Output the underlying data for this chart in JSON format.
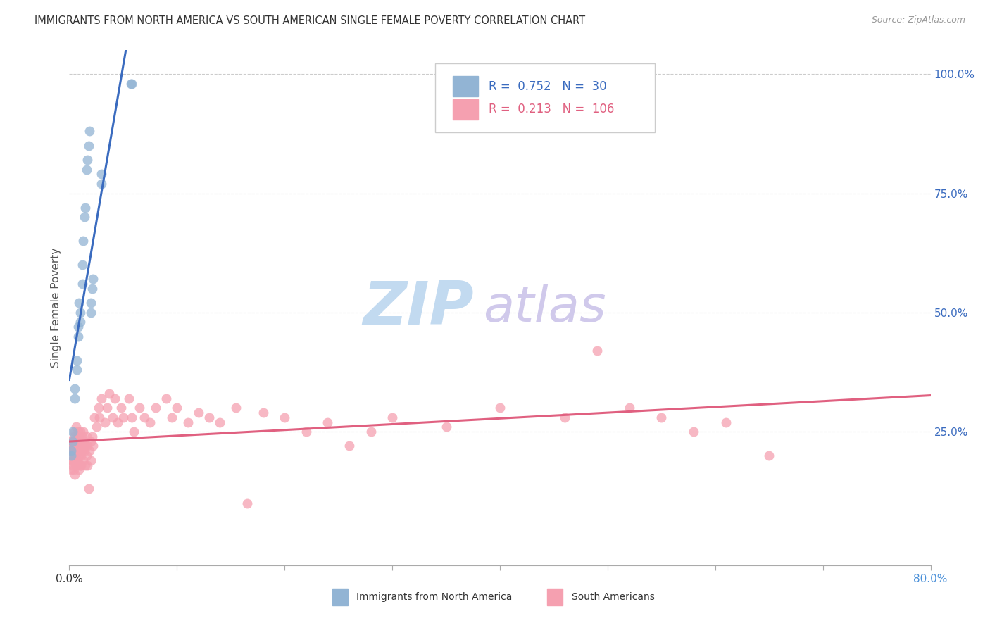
{
  "title": "IMMIGRANTS FROM NORTH AMERICA VS SOUTH AMERICAN SINGLE FEMALE POVERTY CORRELATION CHART",
  "source": "Source: ZipAtlas.com",
  "ylabel": "Single Female Poverty",
  "right_yticks": [
    "100.0%",
    "75.0%",
    "50.0%",
    "25.0%"
  ],
  "right_ytick_vals": [
    1.0,
    0.75,
    0.5,
    0.25
  ],
  "legend_label1": "Immigrants from North America",
  "legend_label2": "South Americans",
  "R1": 0.752,
  "N1": 30,
  "R2": 0.213,
  "N2": 106,
  "color_blue": "#92b4d4",
  "color_blue_line": "#3a6bbf",
  "color_pink": "#f5a0b0",
  "color_pink_line": "#e06080",
  "color_blue_text": "#3a6bbf",
  "color_pink_text": "#e06080",
  "xmin": 0.0,
  "xmax": 0.8,
  "ymin": -0.03,
  "ymax": 1.05,
  "xtick_positions": [
    0.0,
    0.1,
    0.2,
    0.3,
    0.4,
    0.5,
    0.6,
    0.7,
    0.8
  ],
  "xtick_labels_show": [
    "0.0%",
    "",
    "",
    "",
    "",
    "",
    "",
    "",
    "80.0%"
  ],
  "blue_x": [
    0.002,
    0.002,
    0.003,
    0.003,
    0.005,
    0.005,
    0.007,
    0.007,
    0.008,
    0.008,
    0.009,
    0.01,
    0.01,
    0.012,
    0.012,
    0.013,
    0.014,
    0.015,
    0.016,
    0.017,
    0.018,
    0.019,
    0.02,
    0.02,
    0.021,
    0.022,
    0.03,
    0.03,
    0.057,
    0.058
  ],
  "blue_y": [
    0.21,
    0.2,
    0.25,
    0.23,
    0.32,
    0.34,
    0.4,
    0.38,
    0.45,
    0.47,
    0.52,
    0.5,
    0.48,
    0.6,
    0.56,
    0.65,
    0.7,
    0.72,
    0.8,
    0.82,
    0.85,
    0.88,
    0.5,
    0.52,
    0.55,
    0.57,
    0.77,
    0.79,
    0.98,
    0.98
  ],
  "pink_x": [
    0.001,
    0.001,
    0.002,
    0.002,
    0.002,
    0.003,
    0.003,
    0.003,
    0.003,
    0.004,
    0.004,
    0.004,
    0.004,
    0.005,
    0.005,
    0.005,
    0.005,
    0.005,
    0.006,
    0.006,
    0.006,
    0.006,
    0.006,
    0.007,
    0.007,
    0.007,
    0.007,
    0.008,
    0.008,
    0.008,
    0.008,
    0.009,
    0.009,
    0.009,
    0.009,
    0.01,
    0.01,
    0.01,
    0.01,
    0.011,
    0.011,
    0.011,
    0.012,
    0.012,
    0.013,
    0.013,
    0.013,
    0.014,
    0.014,
    0.015,
    0.015,
    0.016,
    0.016,
    0.017,
    0.017,
    0.018,
    0.019,
    0.02,
    0.02,
    0.021,
    0.022,
    0.023,
    0.025,
    0.027,
    0.028,
    0.03,
    0.033,
    0.035,
    0.037,
    0.04,
    0.042,
    0.045,
    0.048,
    0.05,
    0.055,
    0.058,
    0.06,
    0.065,
    0.07,
    0.075,
    0.08,
    0.09,
    0.095,
    0.1,
    0.11,
    0.12,
    0.13,
    0.14,
    0.155,
    0.165,
    0.18,
    0.2,
    0.22,
    0.24,
    0.26,
    0.28,
    0.3,
    0.35,
    0.4,
    0.46,
    0.49,
    0.52,
    0.55,
    0.58,
    0.61,
    0.65
  ],
  "pink_y": [
    0.23,
    0.21,
    0.19,
    0.22,
    0.17,
    0.21,
    0.19,
    0.23,
    0.18,
    0.22,
    0.2,
    0.17,
    0.24,
    0.21,
    0.19,
    0.23,
    0.16,
    0.25,
    0.21,
    0.18,
    0.23,
    0.2,
    0.26,
    0.19,
    0.22,
    0.24,
    0.18,
    0.21,
    0.23,
    0.19,
    0.25,
    0.2,
    0.22,
    0.17,
    0.24,
    0.21,
    0.18,
    0.23,
    0.25,
    0.2,
    0.22,
    0.18,
    0.24,
    0.21,
    0.22,
    0.19,
    0.25,
    0.21,
    0.23,
    0.18,
    0.22,
    0.24,
    0.2,
    0.22,
    0.18,
    0.13,
    0.21,
    0.23,
    0.19,
    0.24,
    0.22,
    0.28,
    0.26,
    0.3,
    0.28,
    0.32,
    0.27,
    0.3,
    0.33,
    0.28,
    0.32,
    0.27,
    0.3,
    0.28,
    0.32,
    0.28,
    0.25,
    0.3,
    0.28,
    0.27,
    0.3,
    0.32,
    0.28,
    0.3,
    0.27,
    0.29,
    0.28,
    0.27,
    0.3,
    0.1,
    0.29,
    0.28,
    0.25,
    0.27,
    0.22,
    0.25,
    0.28,
    0.26,
    0.3,
    0.28,
    0.42,
    0.3,
    0.28,
    0.25,
    0.27,
    0.2
  ],
  "grid_color": "#cccccc",
  "background_color": "#ffffff",
  "watermark_zip": "ZIP",
  "watermark_atlas": "atlas",
  "watermark_color_zip": "#c8dff5",
  "watermark_color_atlas": "#d4c8f0"
}
